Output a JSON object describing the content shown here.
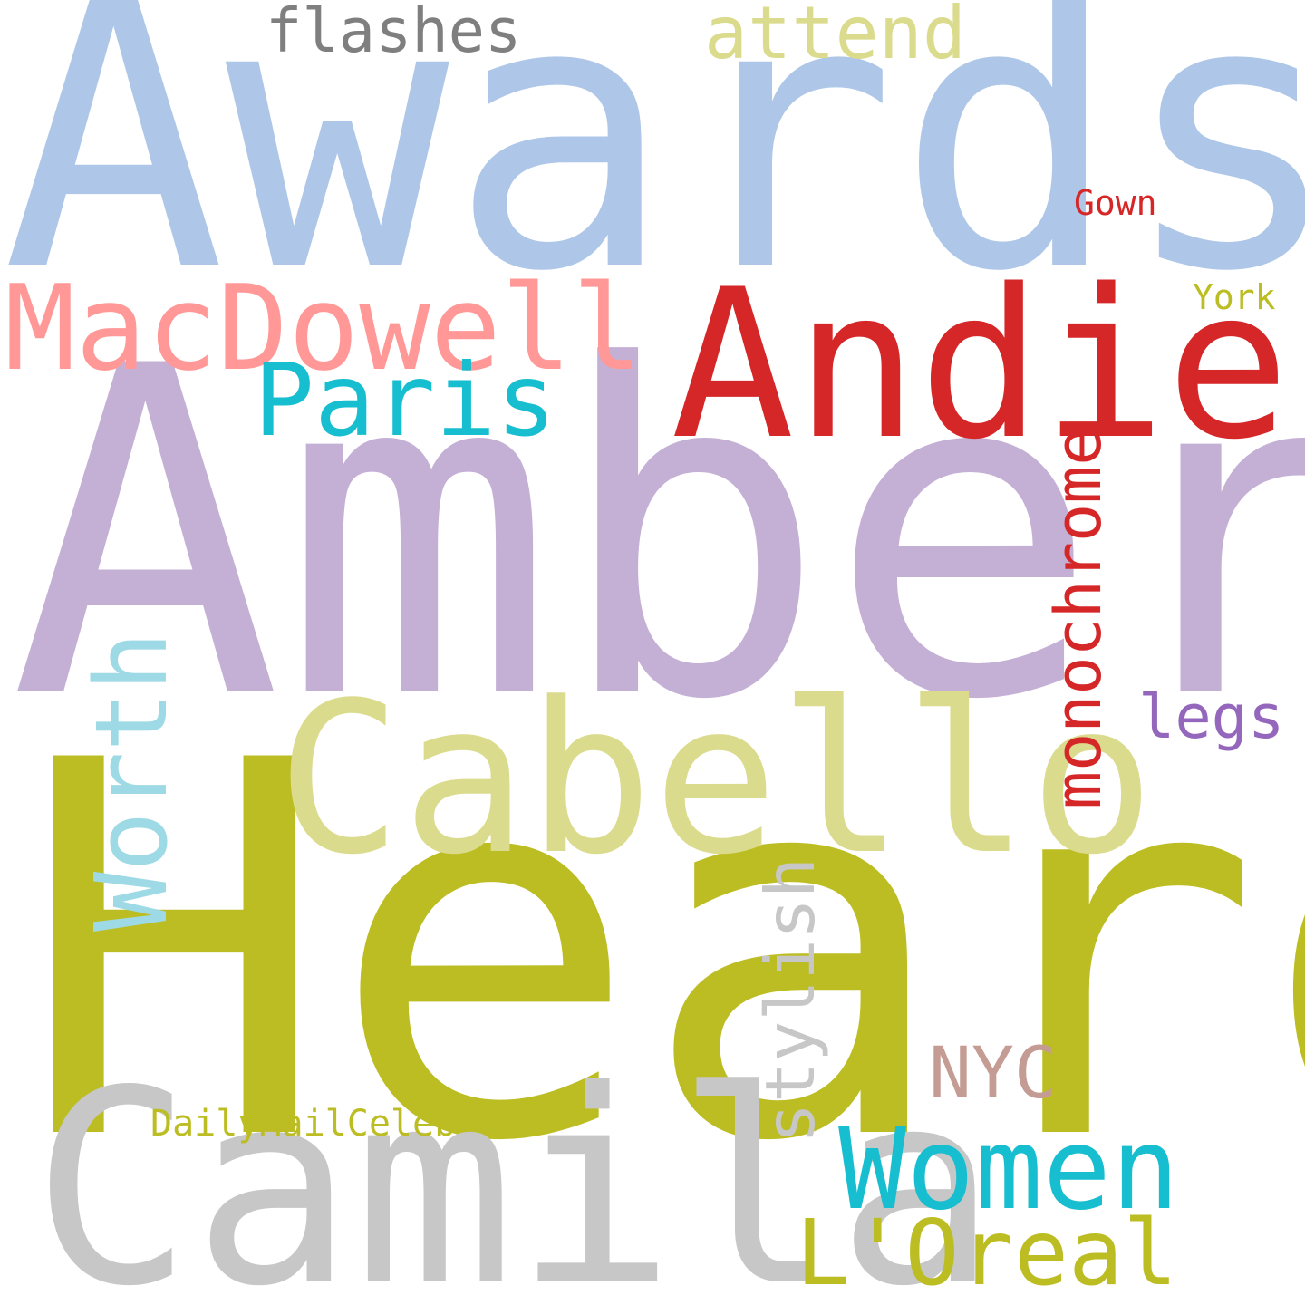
{
  "words": [
    {
      "id": "awards",
      "text": "Awards",
      "color": "#aec7e8",
      "orientation": "horizontal"
    },
    {
      "id": "amber",
      "text": "Amber",
      "color": "#c5b0d5",
      "orientation": "horizontal"
    },
    {
      "id": "heard",
      "text": "Heard",
      "color": "#bcbd22",
      "orientation": "horizontal"
    },
    {
      "id": "camila",
      "text": "Camila",
      "color": "#c7c7c7",
      "orientation": "horizontal"
    },
    {
      "id": "cabello",
      "text": "Cabello",
      "color": "#dbdb8d",
      "orientation": "horizontal"
    },
    {
      "id": "andie",
      "text": "Andie",
      "color": "#d62728",
      "orientation": "horizontal"
    },
    {
      "id": "macdowell",
      "text": "MacDowell",
      "color": "#ff9896",
      "orientation": "horizontal"
    },
    {
      "id": "paris",
      "text": "Paris",
      "color": "#17becf",
      "orientation": "horizontal"
    },
    {
      "id": "women",
      "text": "Women",
      "color": "#17becf",
      "orientation": "horizontal"
    },
    {
      "id": "loreal",
      "text": "L'Oreal",
      "color": "#bcbd22",
      "orientation": "horizontal"
    },
    {
      "id": "worth",
      "text": "Worth",
      "color": "#9edae5",
      "orientation": "vertical"
    },
    {
      "id": "monochrome",
      "text": "monochrome",
      "color": "#d62728",
      "orientation": "vertical"
    },
    {
      "id": "stylish",
      "text": "stylish",
      "color": "#c7c7c7",
      "orientation": "vertical"
    },
    {
      "id": "flashes",
      "text": "flashes",
      "color": "#7f7f7f",
      "orientation": "horizontal"
    },
    {
      "id": "attend",
      "text": "attend",
      "color": "#dbdb8d",
      "orientation": "horizontal"
    },
    {
      "id": "legs",
      "text": "legs",
      "color": "#9467bd",
      "orientation": "horizontal"
    },
    {
      "id": "nyc",
      "text": "NYC",
      "color": "#c49c94",
      "orientation": "horizontal"
    },
    {
      "id": "gown",
      "text": "Gown",
      "color": "#d62728",
      "orientation": "horizontal"
    },
    {
      "id": "york",
      "text": "York",
      "color": "#bcbd22",
      "orientation": "horizontal"
    },
    {
      "id": "dailymailceleb",
      "text": "DailyMailCeleb",
      "color": "#bcbd22",
      "orientation": "horizontal"
    }
  ]
}
